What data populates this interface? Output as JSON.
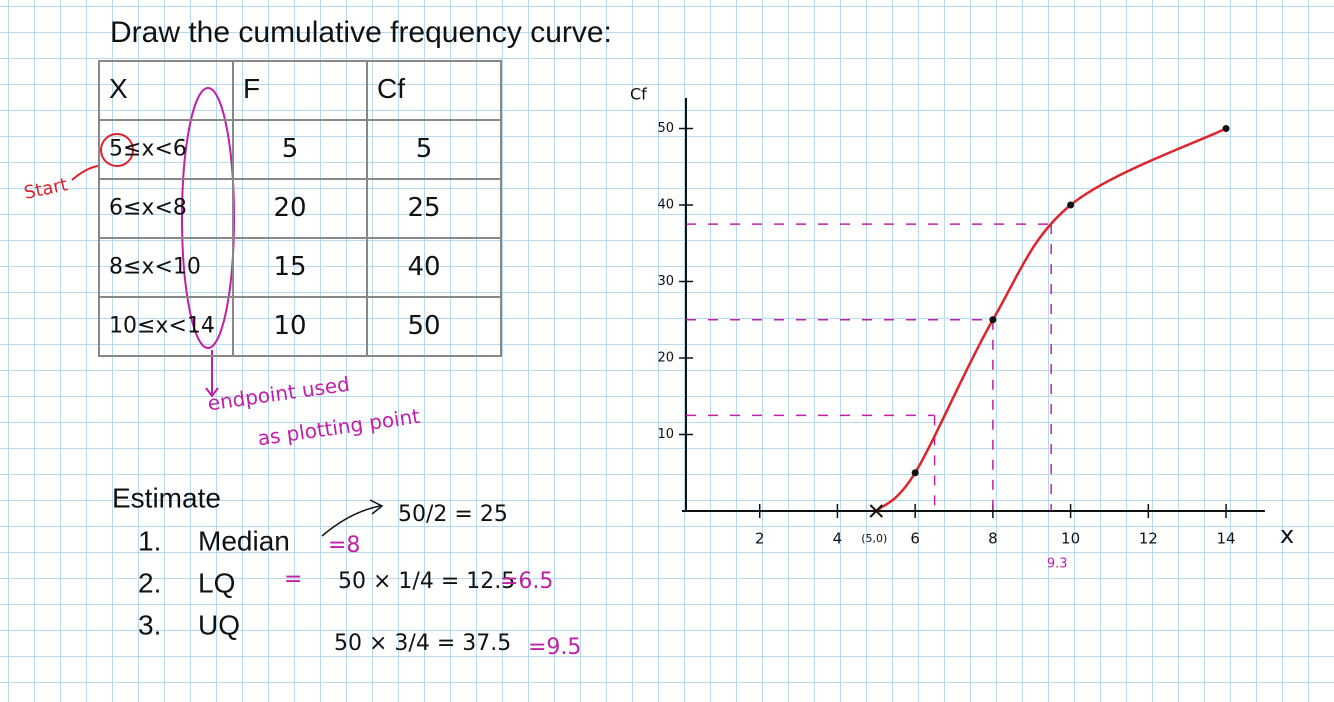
{
  "title": "Draw the cumulative frequency curve:",
  "table": {
    "header": [
      "X",
      "F",
      "Cf"
    ],
    "rows": [
      [
        "5≤x<6",
        "5",
        "5"
      ],
      [
        "6≤x<8",
        "20",
        "25"
      ],
      [
        "8≤x<10",
        "15",
        "40"
      ],
      [
        "10≤x<14",
        "10",
        "50"
      ]
    ]
  },
  "notes": {
    "start": "Start",
    "endpoint": [
      "endpoint used",
      "as plotting point"
    ]
  },
  "estimate": {
    "heading": "Estimate",
    "items": [
      {
        "number": "1.",
        "label": "Median",
        "work": [
          "=8",
          "50/2 = 25"
        ]
      },
      {
        "number": "2.",
        "label": "LQ",
        "work": [
          "=",
          "50 × 1/4 = 12.5",
          "=6.5"
        ]
      },
      {
        "number": "3.",
        "label": "UQ",
        "work": [
          "50 × 3/4 = 37.5",
          "=9.5"
        ]
      }
    ]
  },
  "chart_data": {
    "type": "line",
    "xlabel": "x",
    "ylabel": "Cf",
    "x": [
      5,
      6,
      8,
      10,
      14
    ],
    "series": [
      {
        "color": "#e0232b",
        "values": [
          0,
          5,
          25,
          40,
          50
        ]
      }
    ],
    "xlim": [
      0,
      15
    ],
    "ylim": [
      0,
      54
    ],
    "xticks": [
      2,
      4,
      6,
      8,
      10,
      12,
      14
    ],
    "yticks": [
      10,
      20,
      30,
      40,
      50
    ],
    "readings": [
      {
        "x": 6.5,
        "y": 12.5
      },
      {
        "x": 8,
        "y": 25
      },
      {
        "x": 9.5,
        "y": 37.5
      }
    ],
    "reading_color": "#c21fa8",
    "annotations": [
      "(5,0)",
      "9.3"
    ]
  }
}
